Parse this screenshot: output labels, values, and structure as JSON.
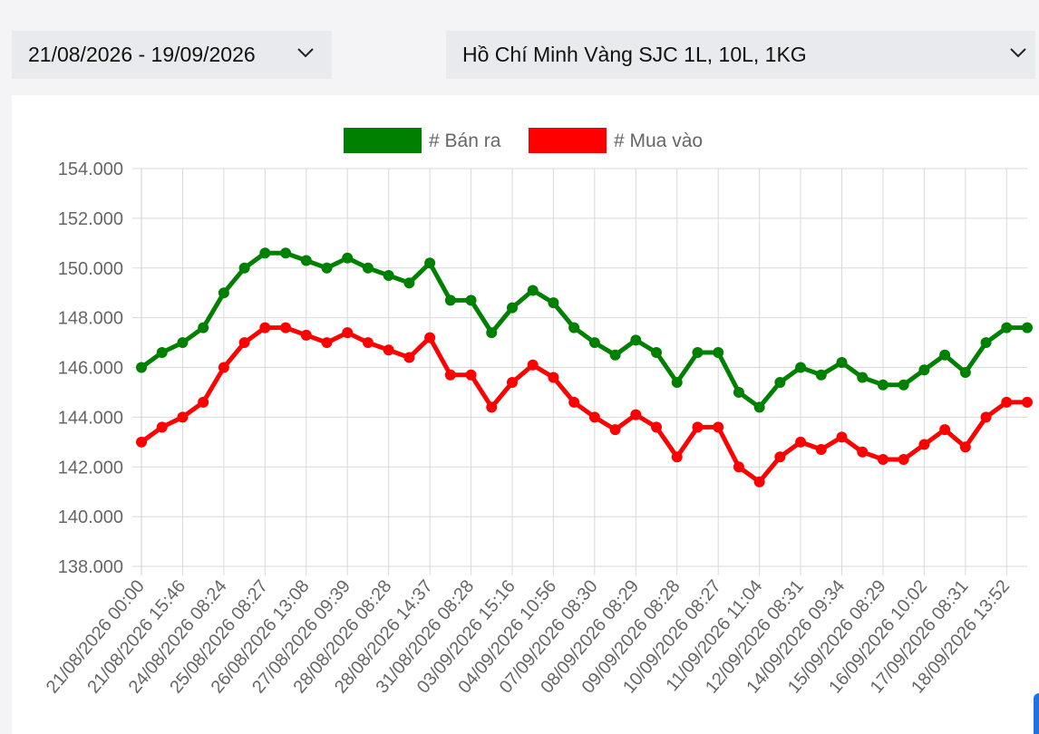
{
  "filters": {
    "date_range": "21/08/2026 - 19/09/2026",
    "location": "Hồ Chí Minh Vàng SJC 1L, 10L, 1KG",
    "chevron_icon": "chevron-down-icon"
  },
  "chart_data": {
    "type": "line",
    "title": "",
    "xlabel": "",
    "ylabel": "",
    "ylim": [
      138000,
      154000
    ],
    "y_ticks": [
      "154.000",
      "152.000",
      "150.000",
      "148.000",
      "146.000",
      "144.000",
      "142.000",
      "140.000",
      "138.000"
    ],
    "legend_position": "top-center",
    "grid": true,
    "x_labels": [
      "21/08/2026 00:00",
      "21/08/2026 15:46",
      "24/08/2026 08:24",
      "25/08/2026 08:27",
      "26/08/2026 13:08",
      "27/08/2026 09:39",
      "28/08/2026 08:28",
      "28/08/2026 14:37",
      "31/08/2026 08:28",
      "03/09/2026 15:16",
      "04/09/2026 10:56",
      "07/09/2026 08:30",
      "08/09/2026 08:29",
      "09/09/2026 08:28",
      "10/09/2026 08:27",
      "11/09/2026 11:04",
      "12/09/2026 08:31",
      "14/09/2026 09:34",
      "15/09/2026 08:29",
      "16/09/2026 10:02",
      "17/09/2026 08:31",
      "18/09/2026 13:52"
    ],
    "series": [
      {
        "name": "# Bán ra",
        "color": "#008000",
        "values": [
          146000,
          146600,
          147000,
          147600,
          149000,
          150000,
          150600,
          150600,
          150300,
          150000,
          150400,
          150000,
          149700,
          149400,
          150200,
          148700,
          148700,
          147400,
          148400,
          149100,
          148600,
          147600,
          147000,
          146500,
          147100,
          146600,
          145400,
          146600,
          146600,
          145000,
          144400,
          145400,
          146000,
          145700,
          146200,
          145600,
          145300,
          145300,
          145900,
          146500,
          145800,
          147000,
          147600,
          147600
        ]
      },
      {
        "name": "# Mua vào",
        "color": "#ff0000",
        "values": [
          143000,
          143600,
          144000,
          144600,
          146000,
          147000,
          147600,
          147600,
          147300,
          147000,
          147400,
          147000,
          146700,
          146400,
          147200,
          145700,
          145700,
          144400,
          145400,
          146100,
          145600,
          144600,
          144000,
          143500,
          144100,
          143600,
          142400,
          143600,
          143600,
          142000,
          141400,
          142400,
          143000,
          142700,
          143200,
          142600,
          142300,
          142300,
          142900,
          143500,
          142800,
          144000,
          144600,
          144600
        ]
      }
    ]
  }
}
